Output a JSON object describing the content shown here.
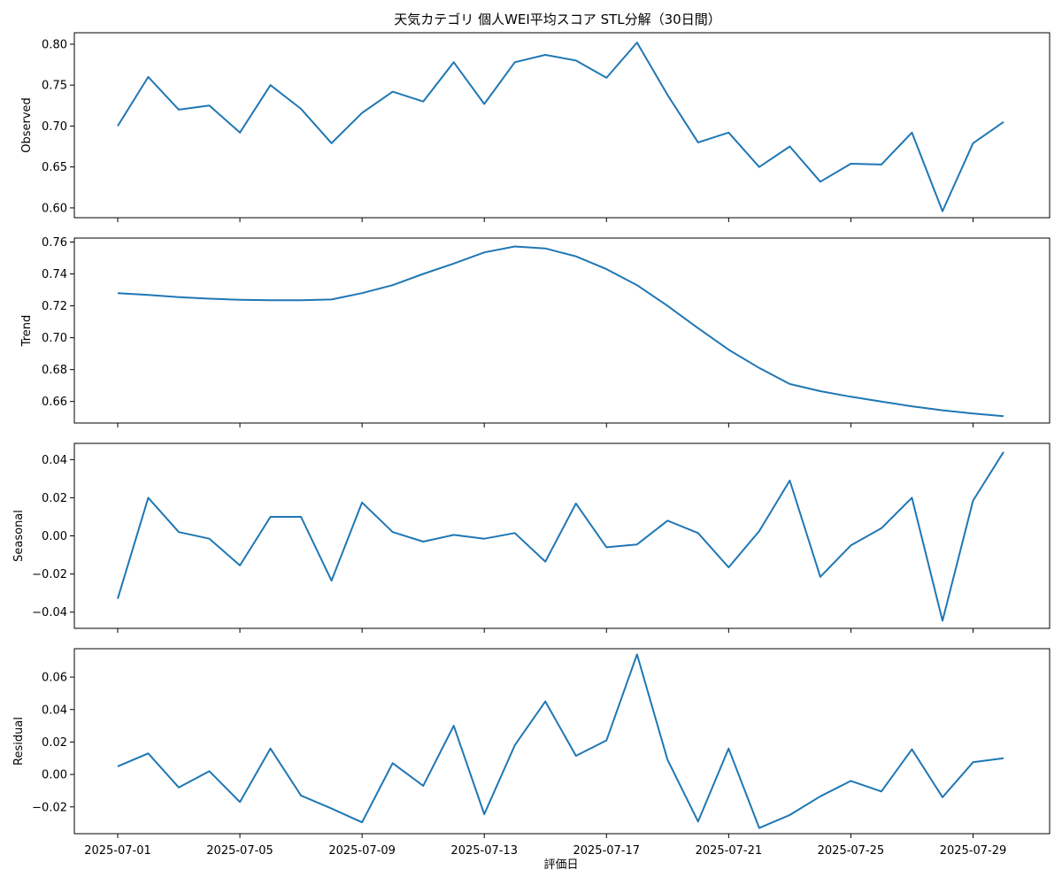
{
  "chart_data": {
    "type": "line",
    "title": "天気カテゴリ 個人WEI平均スコア STL分解（30日間）",
    "xlabel": "評価日",
    "x": [
      "2025-07-01",
      "2025-07-02",
      "2025-07-03",
      "2025-07-04",
      "2025-07-05",
      "2025-07-06",
      "2025-07-07",
      "2025-07-08",
      "2025-07-09",
      "2025-07-10",
      "2025-07-11",
      "2025-07-12",
      "2025-07-13",
      "2025-07-14",
      "2025-07-15",
      "2025-07-16",
      "2025-07-17",
      "2025-07-18",
      "2025-07-19",
      "2025-07-20",
      "2025-07-21",
      "2025-07-22",
      "2025-07-23",
      "2025-07-24",
      "2025-07-25",
      "2025-07-26",
      "2025-07-27",
      "2025-07-28",
      "2025-07-29",
      "2025-07-30"
    ],
    "xticks": [
      "2025-07-01",
      "2025-07-05",
      "2025-07-09",
      "2025-07-13",
      "2025-07-17",
      "2025-07-21",
      "2025-07-25",
      "2025-07-29"
    ],
    "line_color": "#1f77b4",
    "panels": [
      {
        "ylabel": "Observed",
        "ylim": [
          0.588,
          0.814
        ],
        "yticks": [
          "0.60",
          "0.65",
          "0.70",
          "0.75",
          "0.80"
        ],
        "values": [
          0.7,
          0.76,
          0.72,
          0.725,
          0.692,
          0.75,
          0.721,
          0.679,
          0.716,
          0.742,
          0.73,
          0.778,
          0.727,
          0.778,
          0.787,
          0.78,
          0.759,
          0.802,
          0.738,
          0.68,
          0.692,
          0.65,
          0.675,
          0.632,
          0.654,
          0.653,
          0.692,
          0.596,
          0.679,
          0.705
        ]
      },
      {
        "ylabel": "Trend",
        "ylim": [
          0.6465,
          0.7625
        ],
        "yticks": [
          "0.66",
          "0.68",
          "0.70",
          "0.72",
          "0.74",
          "0.76"
        ],
        "values": [
          0.728,
          0.7268,
          0.7255,
          0.7245,
          0.7238,
          0.7235,
          0.7235,
          0.724,
          0.728,
          0.733,
          0.74,
          0.7465,
          0.7535,
          0.7572,
          0.756,
          0.751,
          0.743,
          0.733,
          0.72,
          0.706,
          0.6925,
          0.681,
          0.671,
          0.6665,
          0.663,
          0.66,
          0.657,
          0.6545,
          0.6525,
          0.6508
        ]
      },
      {
        "ylabel": "Seasonal",
        "ylim": [
          -0.0485,
          0.0485
        ],
        "yticks": [
          "−0.04",
          "−0.02",
          "0.00",
          "0.02",
          "0.04"
        ],
        "values": [
          -0.033,
          0.02,
          0.002,
          -0.0015,
          -0.0155,
          0.01,
          0.01,
          -0.0235,
          0.0175,
          0.002,
          -0.003,
          0.0005,
          -0.0015,
          0.0015,
          -0.0135,
          0.017,
          -0.006,
          -0.0045,
          0.008,
          0.0015,
          -0.0165,
          0.0025,
          0.029,
          -0.0215,
          -0.005,
          0.004,
          0.02,
          -0.0445,
          0.0185,
          0.044
        ]
      },
      {
        "ylabel": "Residual",
        "ylim": [
          -0.0365,
          0.0775
        ],
        "yticks": [
          "−0.02",
          "0.00",
          "0.02",
          "0.04",
          "0.06"
        ],
        "values": [
          0.005,
          0.013,
          -0.008,
          0.002,
          -0.017,
          0.016,
          -0.013,
          -0.021,
          -0.0295,
          0.007,
          -0.007,
          0.03,
          -0.0245,
          0.018,
          0.045,
          0.0115,
          0.021,
          0.074,
          0.009,
          -0.029,
          0.016,
          -0.033,
          -0.025,
          -0.0135,
          -0.004,
          -0.0105,
          0.0155,
          -0.014,
          0.0075,
          0.01
        ]
      }
    ]
  }
}
